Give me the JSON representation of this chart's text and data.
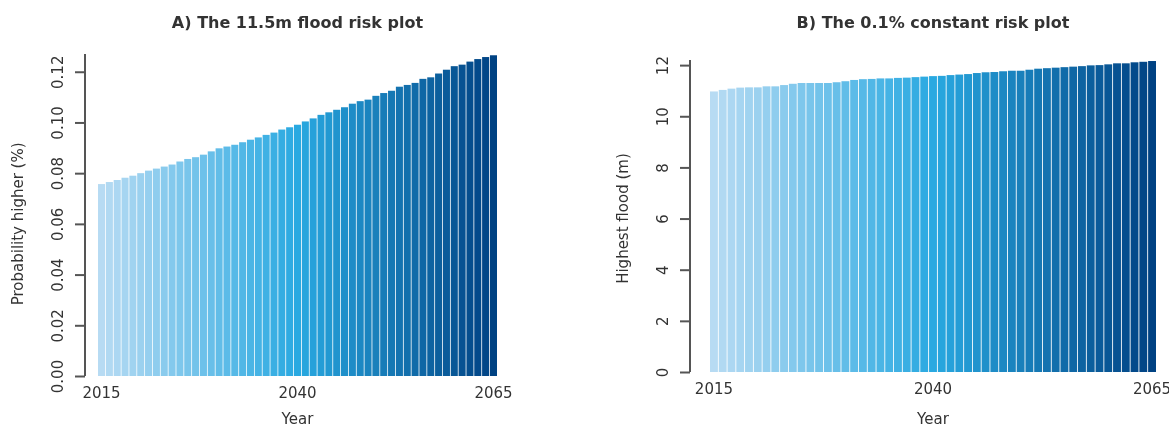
{
  "chart_data": [
    {
      "type": "bar",
      "title": "A) The 11.5m flood risk plot",
      "xlabel": "Year",
      "ylabel": "Probability higher (%)",
      "categories": [
        "2015",
        null,
        null,
        null,
        null,
        null,
        null,
        null,
        null,
        null,
        null,
        null,
        null,
        null,
        null,
        null,
        null,
        null,
        null,
        null,
        null,
        null,
        null,
        null,
        null,
        "2040",
        null,
        null,
        null,
        null,
        null,
        null,
        null,
        null,
        null,
        null,
        null,
        null,
        null,
        null,
        null,
        null,
        null,
        null,
        null,
        null,
        null,
        null,
        null,
        null,
        "2065"
      ],
      "values": [
        0.0757,
        0.0765,
        0.0773,
        0.0782,
        0.079,
        0.08,
        0.081,
        0.0818,
        0.0826,
        0.0834,
        0.0846,
        0.0856,
        0.0863,
        0.0873,
        0.0886,
        0.0898,
        0.0905,
        0.0912,
        0.0922,
        0.0932,
        0.0941,
        0.0951,
        0.096,
        0.0972,
        0.0981,
        0.0991,
        0.1004,
        0.1016,
        0.103,
        0.104,
        0.105,
        0.106,
        0.1074,
        0.1084,
        0.109,
        0.1105,
        0.1116,
        0.1125,
        0.1141,
        0.1148,
        0.1156,
        0.1172,
        0.1178,
        0.1193,
        0.1208,
        0.1222,
        0.1228,
        0.124,
        0.125,
        0.1258,
        0.1265
      ],
      "colors": [
        "#b7dbf3",
        "#b1d9f2",
        "#acd7f2",
        "#a6d5f1",
        "#a0d3f0",
        "#9bd1ef",
        "#95cfef",
        "#8fcdee",
        "#8acbed",
        "#84c9ed",
        "#7ec7ec",
        "#79c5eb",
        "#73c3ea",
        "#6dc1ea",
        "#68bfe9",
        "#62bde8",
        "#5cbbe8",
        "#56b9e7",
        "#51b7e6",
        "#4bb5e5",
        "#45b3e5",
        "#40b1e4",
        "#3aafe3",
        "#34ade2",
        "#2fabe2",
        "#29a9e1",
        "#27a5dd",
        "#26a1da",
        "#249dd6",
        "#2299d2",
        "#2194ce",
        "#1f90ca",
        "#1e8cc7",
        "#1c88c3",
        "#1a84bf",
        "#1980bb",
        "#177cb8",
        "#1578b4",
        "#1473b0",
        "#126fac",
        "#106ba9",
        "#0f67a5",
        "#0d63a1",
        "#0b5f9d",
        "#0a5b9a",
        "#085796",
        "#075292",
        "#054e8e",
        "#034a8b",
        "#024687",
        "#004283"
      ],
      "ylim": [
        0,
        0.127
      ],
      "yticks": [
        {
          "value": 0,
          "label": "0.00"
        },
        {
          "value": 0.02,
          "label": "0.02"
        },
        {
          "value": 0.04,
          "label": "0.04"
        },
        {
          "value": 0.06,
          "label": "0.06"
        },
        {
          "value": 0.08,
          "label": "0.08"
        },
        {
          "value": 0.1,
          "label": "0.10"
        },
        {
          "value": 0.12,
          "label": "0.12"
        }
      ]
    },
    {
      "type": "bar",
      "title": "B) The 0.1% constant risk plot",
      "xlabel": "Year",
      "ylabel": "Highest flood (m)",
      "categories": [
        "2015",
        null,
        null,
        null,
        null,
        null,
        null,
        null,
        null,
        null,
        null,
        null,
        null,
        null,
        null,
        null,
        null,
        null,
        null,
        null,
        null,
        null,
        null,
        null,
        null,
        "2040",
        null,
        null,
        null,
        null,
        null,
        null,
        null,
        null,
        null,
        null,
        null,
        null,
        null,
        null,
        null,
        null,
        null,
        null,
        null,
        null,
        null,
        null,
        null,
        null,
        "2065"
      ],
      "values": [
        10.97,
        11.03,
        11.08,
        11.12,
        11.13,
        11.13,
        11.17,
        11.17,
        11.22,
        11.27,
        11.3,
        11.3,
        11.3,
        11.3,
        11.33,
        11.37,
        11.42,
        11.45,
        11.46,
        11.48,
        11.48,
        11.5,
        11.51,
        11.53,
        11.55,
        11.57,
        11.58,
        11.61,
        11.63,
        11.65,
        11.69,
        11.72,
        11.73,
        11.76,
        11.78,
        11.78,
        11.82,
        11.86,
        11.88,
        11.9,
        11.92,
        11.94,
        11.96,
        11.99,
        12.0,
        12.03,
        12.07,
        12.07,
        12.11,
        12.13,
        12.16
      ],
      "colors": [
        "#b7dbf3",
        "#b1d9f2",
        "#acd7f2",
        "#a6d5f1",
        "#a0d3f0",
        "#9bd1ef",
        "#95cfef",
        "#8fcdee",
        "#8acbed",
        "#84c9ed",
        "#7ec7ec",
        "#79c5eb",
        "#73c3ea",
        "#6dc1ea",
        "#68bfe9",
        "#62bde8",
        "#5cbbe8",
        "#56b9e7",
        "#51b7e6",
        "#4bb5e5",
        "#45b3e5",
        "#40b1e4",
        "#3aafe3",
        "#34ade2",
        "#2fabe2",
        "#29a9e1",
        "#27a5dd",
        "#26a1da",
        "#249dd6",
        "#2299d2",
        "#2194ce",
        "#1f90ca",
        "#1e8cc7",
        "#1c88c3",
        "#1a84bf",
        "#1980bb",
        "#177cb8",
        "#1578b4",
        "#1473b0",
        "#126fac",
        "#106ba9",
        "#0f67a5",
        "#0d63a1",
        "#0b5f9d",
        "#0a5b9a",
        "#085796",
        "#075292",
        "#054e8e",
        "#034a8b",
        "#024687",
        "#004283"
      ],
      "ylim": [
        0,
        12.2
      ],
      "yticks": [
        0,
        2,
        4,
        6,
        8,
        10,
        12
      ]
    }
  ]
}
